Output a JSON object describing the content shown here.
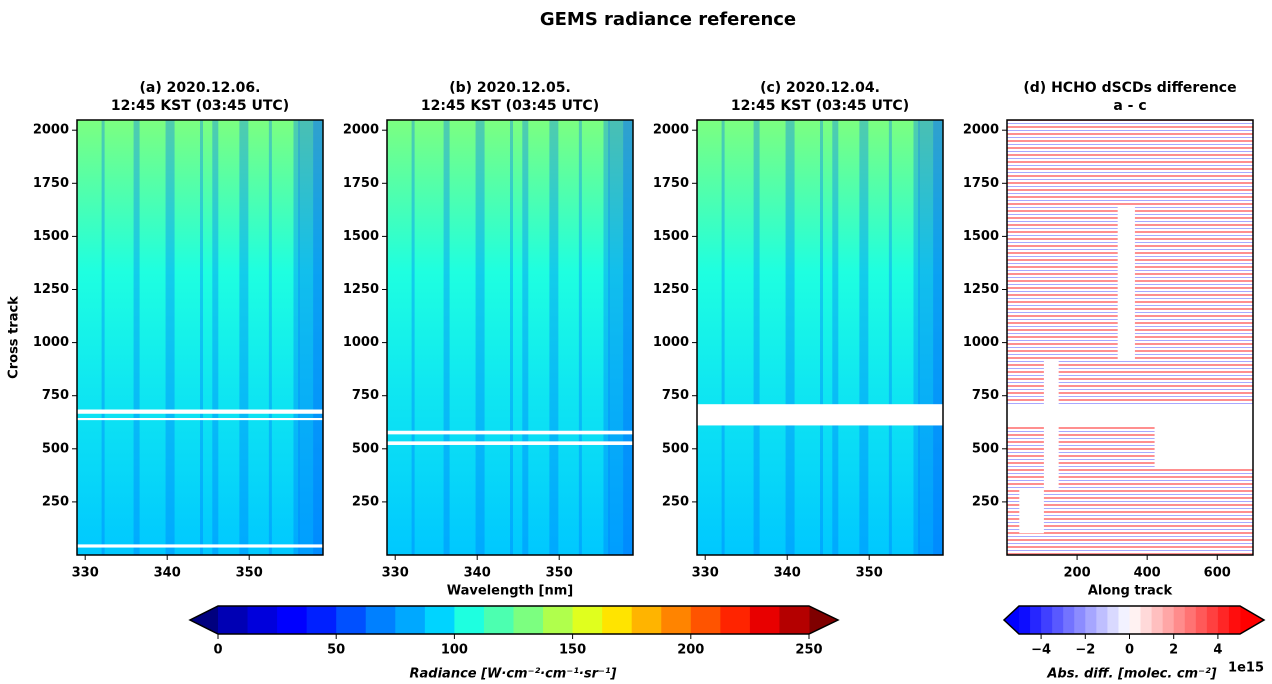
{
  "title": "GEMS radiance reference",
  "chart_data": [
    {
      "type": "heatmap",
      "title": [
        "(a) 2020.12.06.",
        "12:45 KST (03:45 UTC)"
      ],
      "ylabel": "Cross track",
      "xlim": [
        329,
        359
      ],
      "xticks": [
        330,
        340,
        350
      ],
      "ylim": [
        0,
        2048
      ],
      "yticks": [
        250,
        500,
        750,
        1000,
        1250,
        1500,
        1750,
        2000
      ],
      "colormap": "jet",
      "missing_rows": [
        [
          635,
          645
        ],
        [
          665,
          685
        ],
        [
          35,
          50
        ]
      ]
    },
    {
      "type": "heatmap",
      "title": [
        "(b) 2020.12.05.",
        "12:45 KST (03:45 UTC)"
      ],
      "xlabel": "Wavelength [nm]",
      "xlim": [
        329,
        359
      ],
      "xticks": [
        330,
        340,
        350
      ],
      "ylim": [
        0,
        2048
      ],
      "yticks": [
        250,
        500,
        750,
        1000,
        1250,
        1500,
        1750,
        2000
      ],
      "colormap": "jet",
      "missing_rows": [
        [
          518,
          535
        ],
        [
          568,
          585
        ]
      ]
    },
    {
      "type": "heatmap",
      "title": [
        "(c) 2020.12.04.",
        "12:45 KST (03:45 UTC)"
      ],
      "xlim": [
        329,
        359
      ],
      "xticks": [
        330,
        340,
        350
      ],
      "ylim": [
        0,
        2048
      ],
      "yticks": [
        250,
        500,
        750,
        1000,
        1250,
        1500,
        1750,
        2000
      ],
      "colormap": "jet",
      "missing_rows": [
        [
          610,
          710
        ]
      ]
    },
    {
      "type": "heatmap",
      "title": [
        "(d) HCHO dSCDs difference",
        "a - c"
      ],
      "xlabel": "Along track",
      "xlim": [
        0,
        702
      ],
      "xticks": [
        200,
        400,
        600
      ],
      "ylim": [
        0,
        2048
      ],
      "yticks": [
        250,
        500,
        750,
        1000,
        1250,
        1500,
        1750,
        2000
      ],
      "colormap": "bwr",
      "missing_rows": [
        [
          605,
          710
        ]
      ]
    }
  ],
  "colorbars": [
    {
      "label": "Radiance [W·cm⁻²·cm⁻¹·sr⁻¹]",
      "lim": [
        0,
        250
      ],
      "ticks": [
        0,
        50,
        100,
        150,
        200,
        250
      ],
      "under": "#00007f",
      "over": "#7f0000",
      "colors": [
        "#0000b4",
        "#0000dc",
        "#0000ff",
        "#0020ff",
        "#0050ff",
        "#0080ff",
        "#00a8ff",
        "#00d4ff",
        "#1effe0",
        "#4cffb0",
        "#7cff80",
        "#b0ff4c",
        "#e0ff1e",
        "#ffe400",
        "#ffb400",
        "#ff8400",
        "#ff5400",
        "#ff2400",
        "#e80000",
        "#b40000"
      ]
    },
    {
      "label": "Abs. diff. [molec. cm⁻²]",
      "offset": "1e15",
      "lim": [
        -5,
        5
      ],
      "ticks": [
        {
          "value": -4,
          "label": "−4"
        },
        {
          "value": -2,
          "label": "−2"
        },
        0,
        2,
        4
      ],
      "under": "#0000ff",
      "over": "#ff0000",
      "colors": [
        "#0d0dff",
        "#2626ff",
        "#4040ff",
        "#5959ff",
        "#7373ff",
        "#8c8cff",
        "#a6a6ff",
        "#bfbfff",
        "#d9d9ff",
        "#f2f2ff",
        "#fff2f2",
        "#ffd9d9",
        "#ffbfbf",
        "#ffa6a6",
        "#ff8c8c",
        "#ff7373",
        "#ff5959",
        "#ff4040",
        "#ff2626",
        "#ff0d0d"
      ]
    }
  ]
}
